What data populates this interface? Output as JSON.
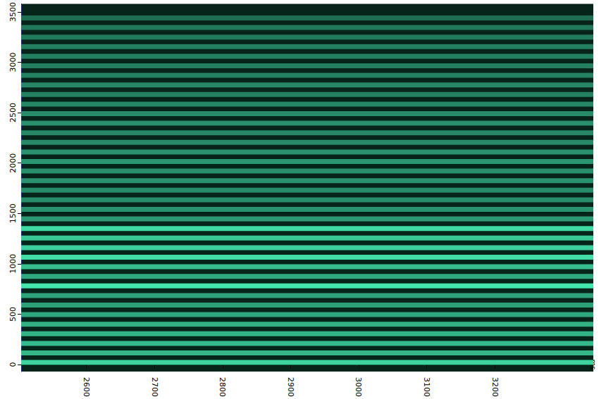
{
  "chart_data": {
    "type": "spectrogram",
    "x_label": "ms",
    "xlim": [
      2504,
      3345
    ],
    "xticks": [
      2600,
      2700,
      2800,
      2900,
      3000,
      3100,
      3200
    ],
    "ylim": [
      -70,
      3580
    ],
    "yticks": [
      0,
      500,
      1000,
      1500,
      2000,
      2500,
      3000,
      3500
    ],
    "grid": false,
    "color": "#46f0b4",
    "harmonics": {
      "freq": [
        20,
        115,
        210,
        305,
        400,
        495,
        590,
        685,
        780,
        875,
        970,
        1065,
        1160,
        1255,
        1350,
        1445,
        1540,
        1635,
        1730,
        1825,
        1920,
        2015,
        2110,
        2205,
        2300,
        2395,
        2490,
        2585,
        2680,
        2775,
        2870,
        2965,
        3060,
        3155,
        3250,
        3345,
        3440
      ],
      "level": [
        85,
        70,
        72,
        68,
        66,
        62,
        58,
        60,
        95,
        62,
        74,
        90,
        82,
        78,
        88,
        55,
        50,
        48,
        46,
        50,
        48,
        52,
        50,
        46,
        44,
        48,
        46,
        44,
        42,
        44,
        42,
        40,
        42,
        40,
        38,
        36,
        30
      ]
    }
  }
}
